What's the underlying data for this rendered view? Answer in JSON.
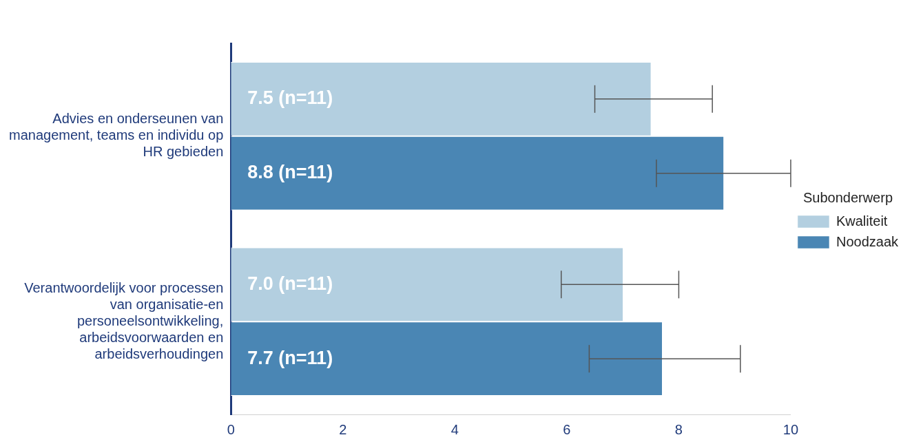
{
  "chart_data": {
    "type": "bar",
    "orientation": "horizontal",
    "categories": [
      "Advies en onderseunen van management, teams en individu op HR gebieden",
      "Verantwoordelijk voor processen van organisatie-en personeelsontwikkeling, arbeidsvoorwaarden en arbeidsverhoudingen"
    ],
    "series": [
      {
        "name": "Kwaliteit",
        "color": "#b3cfe0",
        "values": [
          7.5,
          7.0
        ],
        "value_labels": [
          "7.5 (n=11)",
          "7.0 (n=11)"
        ],
        "errors": [
          [
            6.5,
            8.6
          ],
          [
            5.9,
            8.0
          ]
        ]
      },
      {
        "name": "Noodzaak",
        "color": "#4a86b4",
        "values": [
          8.8,
          7.7
        ],
        "value_labels": [
          "8.8 (n=11)",
          "7.7 (n=11)"
        ],
        "errors": [
          [
            7.6,
            10.0
          ],
          [
            6.4,
            9.1
          ]
        ]
      }
    ],
    "xlim": [
      0,
      10
    ],
    "xticks": [
      0,
      2,
      4,
      6,
      8,
      10
    ],
    "legend": "right",
    "legend_title": "Subonderwerp",
    "grid": false
  }
}
